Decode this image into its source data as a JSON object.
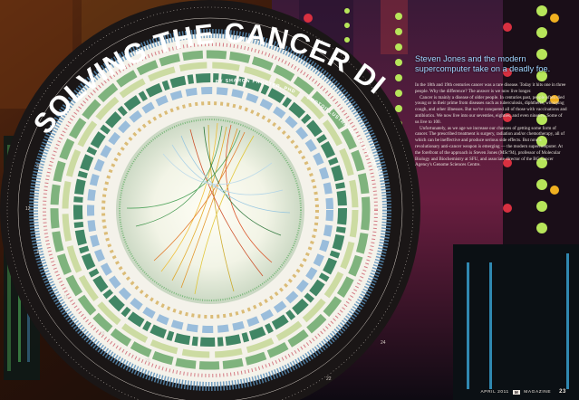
{
  "article": {
    "title": "SOLVING THE CANCER DILEMMA",
    "byline": "BY SHARON PROCTER, PHD",
    "photo_credit": "PHOTOILLUSTRATION BY MARTIN KRZYWINSKI",
    "deck": "Steven Jones and the modern supercomputer take on a deadly foe.",
    "paragraphs": [
      "In the 18th and 19th centuries cancer was a rare disease. Today it hits one in three people. Why the difference? The answer is we now live longer.",
      "Cancer is mainly a disease of older people. In centuries past, people often died young or in their prime from diseases such as tuberculosis, diphtheria, whooping cough, and other illnesses. But we've conquered all of those with vaccinations and antibiotics. We now live into our seventies, eighties, and even nineties. Some of us live to 100.",
      "Unfortunately, as we age we increase our chances of getting some form of cancer. The prescribed treatment is surgery, radiation and/or chemotherapy, all of which can be ineffective and produce serious side effects. But now a revolutionary anti-cancer weapon is emerging — the modern supercomputer. At the forefront of the approach is Steven Jones (MSc'94), professor of Molecular Biology and Biochemistry at SFU, and associate director of the BC Cancer Agency's Genome Sciences Centre."
    ]
  },
  "footer": {
    "date": "APRIL 2011",
    "mark": "M",
    "magazine": "MAGAZINE",
    "page": "23"
  },
  "colors": {
    "deck": "#9fd4ff",
    "title": "#ffffff",
    "ring_dark": "#1a1616"
  }
}
